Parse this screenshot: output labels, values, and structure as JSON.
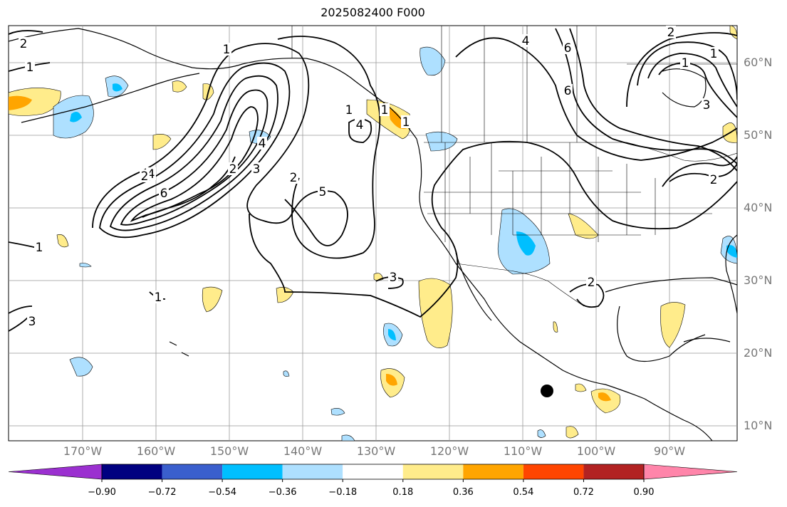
{
  "title": "2025082400 F000",
  "map": {
    "lat_labels": [
      "60°N",
      "50°N",
      "40°N",
      "30°N",
      "20°N",
      "10°N"
    ],
    "lon_labels": [
      "170°W",
      "160°W",
      "150°W",
      "140°W",
      "130°W",
      "120°W",
      "110°W",
      "100°W",
      "90°W"
    ],
    "contour_labels": [
      "2",
      "1",
      "1",
      "6",
      "4",
      "2",
      "3",
      "4",
      "6",
      "6",
      "2",
      "1",
      "1",
      "3",
      "2",
      "4",
      "5",
      "4",
      "2",
      "3",
      "2",
      "3",
      "1",
      "1",
      "1",
      "1",
      "2",
      "1"
    ],
    "land_color": "#ffffff",
    "coast_color": "#000000",
    "grid_color": "#999999"
  },
  "colorbar": {
    "colors": [
      "#9b30d0",
      "#000080",
      "#3a5fcd",
      "#00bfff",
      "#aee0ff",
      "#ffffff",
      "#ffec8b",
      "#ffa500",
      "#ff4500",
      "#b22222",
      "#ff85aa"
    ],
    "tick_labels": [
      "−0.90",
      "−0.72",
      "−0.54",
      "−0.36",
      "−0.18",
      "0.18",
      "0.36",
      "0.54",
      "0.72",
      "0.90"
    ]
  }
}
